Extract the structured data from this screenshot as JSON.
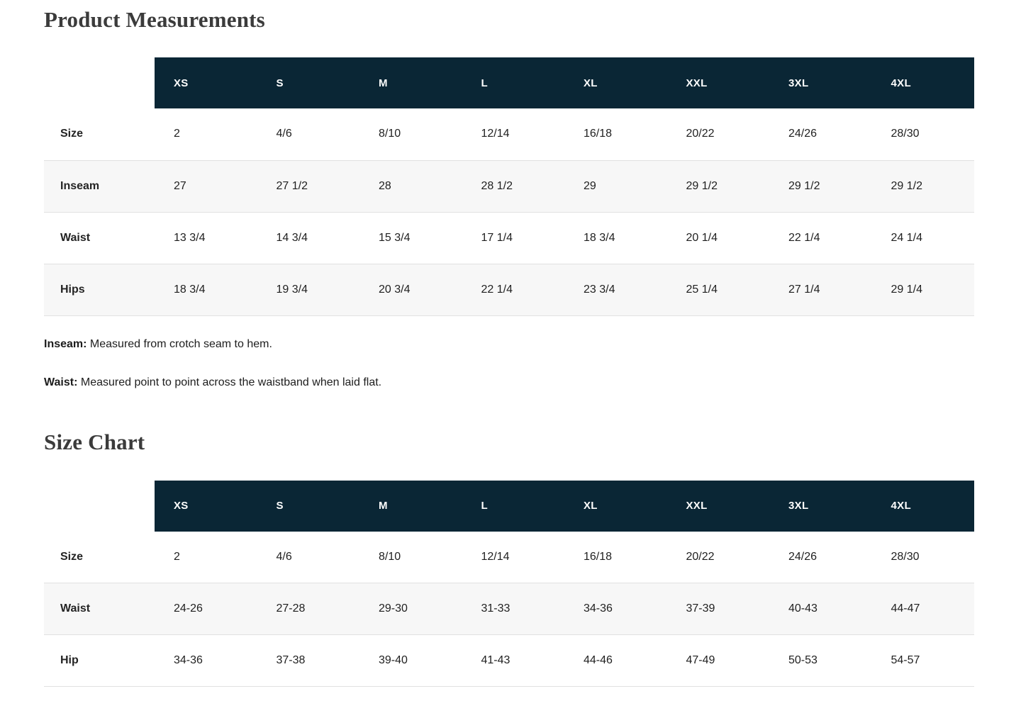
{
  "colors": {
    "header_bg": "#0a2635",
    "header_text": "#ffffff",
    "row_alt_bg": "#f7f7f7",
    "border": "#e1e1e1",
    "heading_text": "#3b3b3b",
    "cell_text": "#1f1f1f"
  },
  "product_measurements": {
    "title": "Product Measurements",
    "columns": [
      "XS",
      "S",
      "M",
      "L",
      "XL",
      "XXL",
      "3XL",
      "4XL"
    ],
    "rows": [
      {
        "label": "Size",
        "values": [
          "2",
          "4/6",
          "8/10",
          "12/14",
          "16/18",
          "20/22",
          "24/26",
          "28/30"
        ]
      },
      {
        "label": "Inseam",
        "values": [
          "27",
          "27 1/2",
          "28",
          "28 1/2",
          "29",
          "29 1/2",
          "29 1/2",
          "29 1/2"
        ]
      },
      {
        "label": "Waist",
        "values": [
          "13 3/4",
          "14 3/4",
          "15 3/4",
          "17 1/4",
          "18 3/4",
          "20 1/4",
          "22 1/4",
          "24 1/4"
        ]
      },
      {
        "label": "Hips",
        "values": [
          "18 3/4",
          "19 3/4",
          "20 3/4",
          "22 1/4",
          "23 3/4",
          "25 1/4",
          "27 1/4",
          "29 1/4"
        ]
      }
    ],
    "notes": [
      {
        "label": "Inseam:",
        "text": "Measured from crotch seam to hem."
      },
      {
        "label": "Waist:",
        "text": "Measured point to point across the waistband when laid flat."
      }
    ]
  },
  "size_chart": {
    "title": "Size Chart",
    "columns": [
      "XS",
      "S",
      "M",
      "L",
      "XL",
      "XXL",
      "3XL",
      "4XL"
    ],
    "rows": [
      {
        "label": "Size",
        "values": [
          "2",
          "4/6",
          "8/10",
          "12/14",
          "16/18",
          "20/22",
          "24/26",
          "28/30"
        ]
      },
      {
        "label": "Waist",
        "values": [
          "24-26",
          "27-28",
          "29-30",
          "31-33",
          "34-36",
          "37-39",
          "40-43",
          "44-47"
        ]
      },
      {
        "label": "Hip",
        "values": [
          "34-36",
          "37-38",
          "39-40",
          "41-43",
          "44-46",
          "47-49",
          "50-53",
          "54-57"
        ]
      }
    ]
  }
}
